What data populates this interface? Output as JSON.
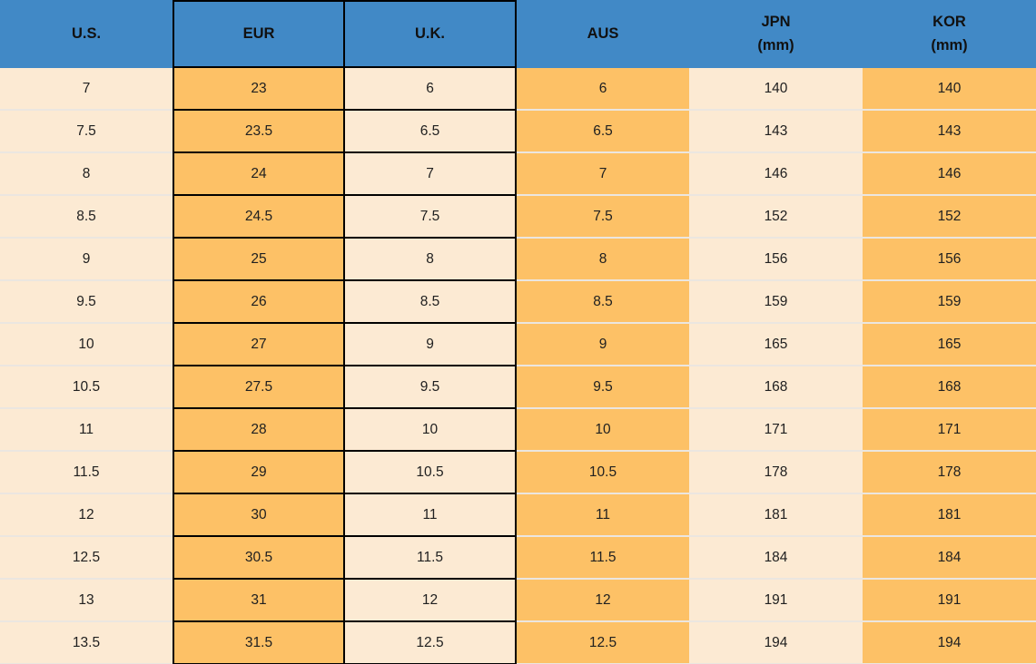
{
  "colors": {
    "header_background": "#4189c6",
    "orange_cell": "#fdc166",
    "cream_cell": "#fcead3",
    "black_border": "#000000",
    "row_divider": "#ebe6e0",
    "header_text": "#111111",
    "cell_text": "#202020"
  },
  "chart_data": {
    "type": "table",
    "columns": [
      {
        "key": "us",
        "label": "U.S."
      },
      {
        "key": "eur",
        "label": "EUR"
      },
      {
        "key": "uk",
        "label": "U.K."
      },
      {
        "key": "aus",
        "label": "AUS"
      },
      {
        "key": "jpn",
        "label": "JPN",
        "sublabel": "(mm)"
      },
      {
        "key": "kor",
        "label": "KOR",
        "sublabel": "(mm)"
      }
    ],
    "rows": [
      [
        "7",
        "23",
        "6",
        "6",
        "140",
        "140"
      ],
      [
        "7.5",
        "23.5",
        "6.5",
        "6.5",
        "143",
        "143"
      ],
      [
        "8",
        "24",
        "7",
        "7",
        "146",
        "146"
      ],
      [
        "8.5",
        "24.5",
        "7.5",
        "7.5",
        "152",
        "152"
      ],
      [
        "9",
        "25",
        "8",
        "8",
        "156",
        "156"
      ],
      [
        "9.5",
        "26",
        "8.5",
        "8.5",
        "159",
        "159"
      ],
      [
        "10",
        "27",
        "9",
        "9",
        "165",
        "165"
      ],
      [
        "10.5",
        "27.5",
        "9.5",
        "9.5",
        "168",
        "168"
      ],
      [
        "11",
        "28",
        "10",
        "10",
        "171",
        "171"
      ],
      [
        "11.5",
        "29",
        "10.5",
        "10.5",
        "178",
        "178"
      ],
      [
        "12",
        "30",
        "11",
        "11",
        "181",
        "181"
      ],
      [
        "12.5",
        "30.5",
        "11.5",
        "11.5",
        "184",
        "184"
      ],
      [
        "13",
        "31",
        "12",
        "12",
        "191",
        "191"
      ],
      [
        "13.5",
        "31.5",
        "12.5",
        "12.5",
        "194",
        "194"
      ]
    ]
  }
}
